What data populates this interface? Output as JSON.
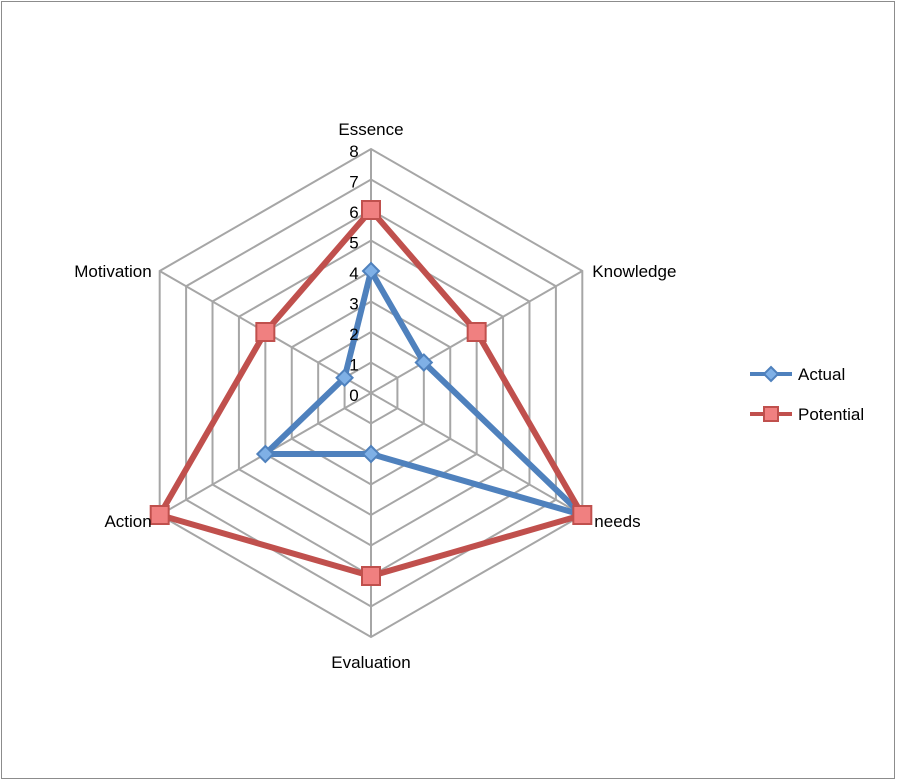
{
  "chart_data": {
    "type": "radar",
    "categories": [
      "Essence",
      "Knowledge",
      "needs",
      "Evaluation",
      "Action",
      "Motivation"
    ],
    "series": [
      {
        "name": "Actual",
        "values": [
          4,
          2,
          8,
          2,
          4,
          1
        ],
        "color": "#4f81bd",
        "marker": "diamond"
      },
      {
        "name": "Potential",
        "values": [
          6,
          4,
          8,
          6,
          8,
          4
        ],
        "color": "#c0504d",
        "marker": "square"
      }
    ],
    "rlim": [
      0,
      8
    ],
    "ticks": [
      "0",
      "1",
      "2",
      "3",
      "4",
      "5",
      "6",
      "7",
      "8"
    ],
    "grid": true,
    "legend_position": "right",
    "grid_color": "#a6a6a6"
  }
}
